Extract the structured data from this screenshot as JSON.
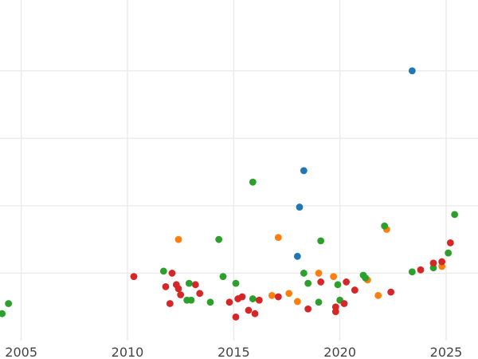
{
  "chart_data": {
    "type": "scatter",
    "title": "",
    "xlabel": "",
    "ylabel": "",
    "grid": true,
    "legend": "none",
    "xlim": [
      2004.0,
      2026.5
    ],
    "ylim": [
      0.0,
      5.05
    ],
    "x_ticks": [
      2005,
      2010,
      2015,
      2020,
      2025
    ],
    "x_tick_labels": [
      "2005",
      "2010",
      "2015",
      "2020",
      "2025"
    ],
    "y_gridlines": [
      1.0,
      2.0,
      3.0,
      4.0
    ],
    "y_tick_labels": [],
    "colors": {
      "blue": "#1f77b4",
      "orange": "#ff7f0e",
      "green": "#2ca02c",
      "red": "#d62728"
    },
    "series": [
      {
        "color": "#1f77b4",
        "points": [
          {
            "x": 2023.4,
            "y": 4.0
          },
          {
            "x": 2018.3,
            "y": 2.52
          },
          {
            "x": 2018.1,
            "y": 1.98
          },
          {
            "x": 2018.0,
            "y": 1.25
          }
        ]
      },
      {
        "color": "#ff7f0e",
        "points": [
          {
            "x": 2012.4,
            "y": 1.5
          },
          {
            "x": 2017.1,
            "y": 1.53
          },
          {
            "x": 2016.8,
            "y": 0.67
          },
          {
            "x": 2017.6,
            "y": 0.7
          },
          {
            "x": 2018.0,
            "y": 0.58
          },
          {
            "x": 2019.0,
            "y": 1.0
          },
          {
            "x": 2019.7,
            "y": 0.95
          },
          {
            "x": 2021.3,
            "y": 0.9
          },
          {
            "x": 2021.8,
            "y": 0.67
          },
          {
            "x": 2022.2,
            "y": 1.65
          },
          {
            "x": 2024.8,
            "y": 1.1
          }
        ]
      },
      {
        "color": "#2ca02c",
        "points": [
          {
            "x": 2004.1,
            "y": 0.4
          },
          {
            "x": 2004.4,
            "y": 0.55
          },
          {
            "x": 2011.7,
            "y": 1.03
          },
          {
            "x": 2012.8,
            "y": 0.6
          },
          {
            "x": 2012.9,
            "y": 0.85
          },
          {
            "x": 2013.0,
            "y": 0.6
          },
          {
            "x": 2013.9,
            "y": 0.57
          },
          {
            "x": 2014.3,
            "y": 1.5
          },
          {
            "x": 2014.5,
            "y": 0.95
          },
          {
            "x": 2015.1,
            "y": 0.85
          },
          {
            "x": 2015.9,
            "y": 2.35
          },
          {
            "x": 2015.9,
            "y": 0.62
          },
          {
            "x": 2018.3,
            "y": 1.0
          },
          {
            "x": 2018.5,
            "y": 0.85
          },
          {
            "x": 2019.0,
            "y": 0.57
          },
          {
            "x": 2019.1,
            "y": 1.48
          },
          {
            "x": 2019.9,
            "y": 0.83
          },
          {
            "x": 2020.0,
            "y": 0.6
          },
          {
            "x": 2021.1,
            "y": 0.97
          },
          {
            "x": 2021.2,
            "y": 0.93
          },
          {
            "x": 2022.1,
            "y": 1.7
          },
          {
            "x": 2023.4,
            "y": 1.02
          },
          {
            "x": 2024.4,
            "y": 1.08
          },
          {
            "x": 2025.1,
            "y": 1.3
          },
          {
            "x": 2025.4,
            "y": 1.87
          }
        ]
      },
      {
        "color": "#d62728",
        "points": [
          {
            "x": 2010.3,
            "y": 0.95
          },
          {
            "x": 2011.8,
            "y": 0.8
          },
          {
            "x": 2012.0,
            "y": 0.55
          },
          {
            "x": 2012.1,
            "y": 1.0
          },
          {
            "x": 2012.3,
            "y": 0.83
          },
          {
            "x": 2012.4,
            "y": 0.77
          },
          {
            "x": 2012.5,
            "y": 0.68
          },
          {
            "x": 2013.2,
            "y": 0.83
          },
          {
            "x": 2013.4,
            "y": 0.7
          },
          {
            "x": 2014.8,
            "y": 0.57
          },
          {
            "x": 2015.1,
            "y": 0.35
          },
          {
            "x": 2015.2,
            "y": 0.62
          },
          {
            "x": 2015.4,
            "y": 0.65
          },
          {
            "x": 2015.7,
            "y": 0.45
          },
          {
            "x": 2016.0,
            "y": 0.4
          },
          {
            "x": 2016.2,
            "y": 0.6
          },
          {
            "x": 2017.1,
            "y": 0.65
          },
          {
            "x": 2018.5,
            "y": 0.47
          },
          {
            "x": 2019.1,
            "y": 0.87
          },
          {
            "x": 2019.8,
            "y": 0.5
          },
          {
            "x": 2019.8,
            "y": 0.43
          },
          {
            "x": 2020.2,
            "y": 0.55
          },
          {
            "x": 2020.3,
            "y": 0.87
          },
          {
            "x": 2020.7,
            "y": 0.75
          },
          {
            "x": 2022.4,
            "y": 0.72
          },
          {
            "x": 2023.8,
            "y": 1.05
          },
          {
            "x": 2024.4,
            "y": 1.15
          },
          {
            "x": 2024.8,
            "y": 1.17
          },
          {
            "x": 2025.2,
            "y": 1.45
          }
        ]
      }
    ]
  }
}
